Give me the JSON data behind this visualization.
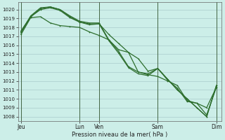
{
  "xlabel": "Pression niveau de la mer( hPa )",
  "bg_color": "#cceee8",
  "grid_color": "#aacccc",
  "line_color": "#2d6e2d",
  "marker_color": "#2d6e2d",
  "ylim": [
    1007.5,
    1020.8
  ],
  "yticks": [
    1008,
    1009,
    1010,
    1011,
    1012,
    1013,
    1014,
    1015,
    1016,
    1017,
    1018,
    1019,
    1020
  ],
  "xtick_labels": [
    "Jeu",
    "Lun",
    "Ven",
    "Sam",
    "Dim"
  ],
  "xtick_positions": [
    0,
    6,
    8,
    14,
    20
  ],
  "vline_positions": [
    0,
    6,
    8,
    14,
    20
  ],
  "xlim": [
    -0.3,
    20.5
  ],
  "series1_x": [
    0,
    1,
    2,
    3,
    4,
    5,
    6,
    7,
    8,
    9,
    10,
    11,
    12,
    13,
    14,
    15,
    16,
    17,
    18,
    19,
    20
  ],
  "series1_y": [
    1017.2,
    1019.1,
    1019.2,
    1018.5,
    1018.2,
    1018.1,
    1018.0,
    1017.5,
    1017.1,
    1016.6,
    1015.5,
    1015.2,
    1013.0,
    1012.7,
    1012.5,
    1012.0,
    1011.5,
    1009.8,
    1009.5,
    1008.2,
    1011.3
  ],
  "series2_x": [
    0,
    1,
    2,
    3,
    4,
    5,
    6,
    7,
    8,
    9,
    10,
    11,
    12,
    13,
    14,
    15,
    16,
    17,
    18,
    19,
    20
  ],
  "series2_y": [
    1017.4,
    1019.2,
    1020.0,
    1020.2,
    1019.9,
    1019.1,
    1018.6,
    1018.3,
    1018.4,
    1016.5,
    1015.1,
    1013.5,
    1012.8,
    1012.6,
    1013.4,
    1012.2,
    1011.0,
    1010.0,
    1009.0,
    1008.0,
    1011.5
  ],
  "series3_x": [
    0,
    1,
    2,
    3,
    4,
    5,
    6,
    7,
    8,
    9,
    10,
    11,
    12,
    13,
    14,
    15,
    16,
    17,
    18,
    19,
    20
  ],
  "series3_y": [
    1017.5,
    1019.3,
    1020.2,
    1020.3,
    1020.0,
    1019.3,
    1018.7,
    1018.5,
    1018.5,
    1016.6,
    1015.3,
    1013.6,
    1013.0,
    1012.8,
    1013.4,
    1012.2,
    1011.0,
    1010.0,
    1009.0,
    1008.0,
    1011.5
  ],
  "series4_x": [
    0,
    1,
    2,
    3,
    4,
    5,
    6,
    7,
    8,
    9,
    10,
    11,
    12,
    13,
    14,
    15,
    16,
    17,
    18,
    19,
    20
  ],
  "series4_y": [
    1017.6,
    1019.2,
    1020.1,
    1020.3,
    1020.0,
    1019.2,
    1018.6,
    1018.4,
    1018.4,
    1017.2,
    1016.2,
    1015.2,
    1014.5,
    1013.1,
    1013.4,
    1012.1,
    1011.2,
    1009.7,
    1009.5,
    1009.0,
    1011.3
  ]
}
